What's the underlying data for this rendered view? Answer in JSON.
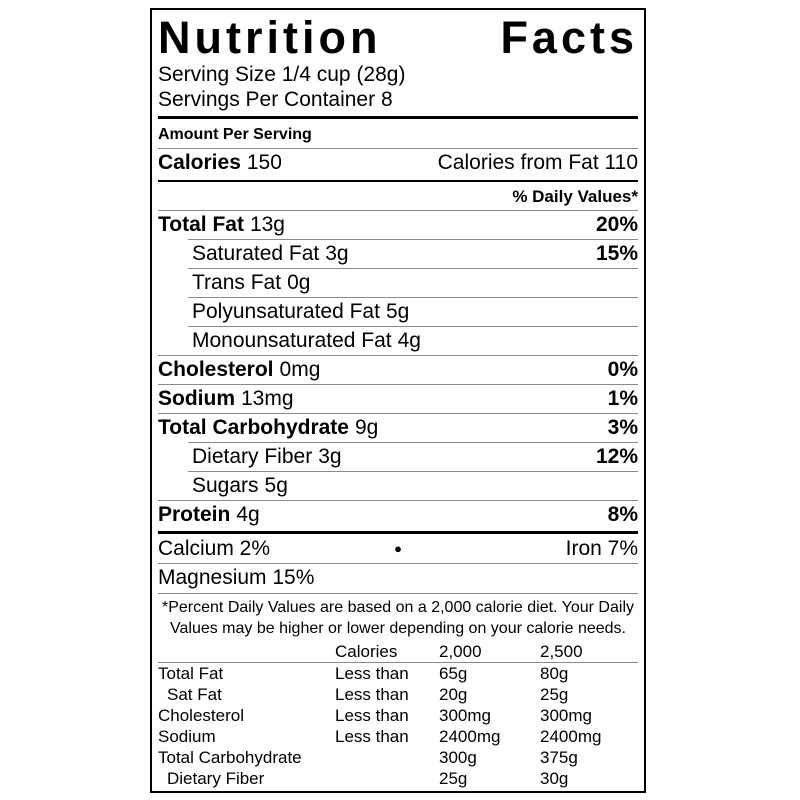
{
  "label": {
    "title": {
      "word1": "Nutrition",
      "word2": "Facts"
    },
    "serving_size": "Serving Size 1/4 cup (28g)",
    "servings_per_container": "Servings Per Container 8",
    "amount_per_serving": "Amount Per Serving",
    "calories": {
      "name": "Calories",
      "value": "150",
      "from_fat": "Calories from Fat 110"
    },
    "daily_values_header": "% Daily Values*",
    "nutrients": [
      {
        "name": "Total Fat",
        "amount": "13g",
        "dv": "20%"
      },
      {
        "name": "Saturated Fat",
        "amount": "3g",
        "dv": "15%"
      },
      {
        "name": "Trans Fat",
        "amount": "0g",
        "dv": ""
      },
      {
        "name": "Polyunsaturated Fat",
        "amount": "5g",
        "dv": ""
      },
      {
        "name": "Monounsaturated Fat",
        "amount": "4g",
        "dv": ""
      },
      {
        "name": "Cholesterol",
        "amount": "0mg",
        "dv": "0%"
      },
      {
        "name": "Sodium",
        "amount": "13mg",
        "dv": "1%"
      },
      {
        "name": "Total Carbohydrate",
        "amount": "9g",
        "dv": "3%"
      },
      {
        "name": "Dietary Fiber",
        "amount": "3g",
        "dv": "12%"
      },
      {
        "name": "Sugars",
        "amount": "5g",
        "dv": ""
      },
      {
        "name": "Protein",
        "amount": "4g",
        "dv": "8%"
      }
    ],
    "minerals": {
      "calcium": "Calcium 2%",
      "bullet": "●",
      "iron": "Iron 7%",
      "magnesium": "Magnesium 15%"
    },
    "footnote": "*Percent Daily Values are based on a 2,000 calorie diet. Your Daily Values may be higher or lower depending on your calorie needs.",
    "reference_table": {
      "header": [
        "",
        "Calories",
        "2,000",
        "2,500"
      ],
      "rows": [
        {
          "name": "Total Fat",
          "qualifier": "Less than",
          "v2000": "65g",
          "v2500": "80g"
        },
        {
          "name": "Sat Fat",
          "qualifier": "Less than",
          "v2000": "20g",
          "v2500": "25g"
        },
        {
          "name": "Cholesterol",
          "qualifier": "Less than",
          "v2000": "300mg",
          "v2500": "300mg"
        },
        {
          "name": "Sodium",
          "qualifier": "Less than",
          "v2000": "2400mg",
          "v2500": "2400mg"
        },
        {
          "name": "Total Carbohydrate",
          "qualifier": "",
          "v2000": "300g",
          "v2500": "375g"
        },
        {
          "name": "Dietary Fiber",
          "qualifier": "",
          "v2000": "25g",
          "v2500": "30g"
        }
      ]
    }
  }
}
